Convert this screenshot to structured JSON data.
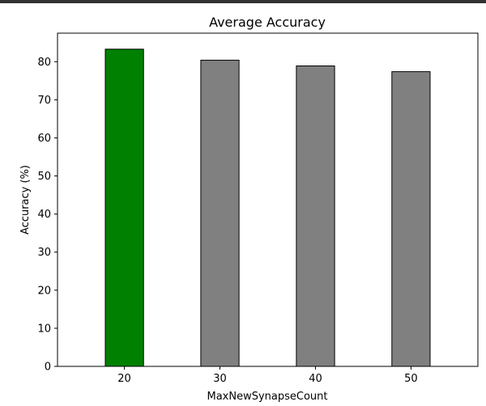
{
  "chart_data": {
    "type": "bar",
    "title": "Average Accuracy",
    "xlabel": "MaxNewSynapseCount",
    "ylabel": "Accuracy (%)",
    "categories": [
      "20",
      "30",
      "40",
      "50"
    ],
    "values": [
      83.3,
      80.4,
      78.9,
      77.4
    ],
    "colors": [
      "#008000",
      "#808080",
      "#808080",
      "#808080"
    ],
    "edge_color": "#000000",
    "ylim": [
      0,
      87.5
    ],
    "yticks": [
      0,
      10,
      20,
      30,
      40,
      50,
      60,
      70,
      80
    ],
    "grid": false,
    "legend": "none"
  }
}
